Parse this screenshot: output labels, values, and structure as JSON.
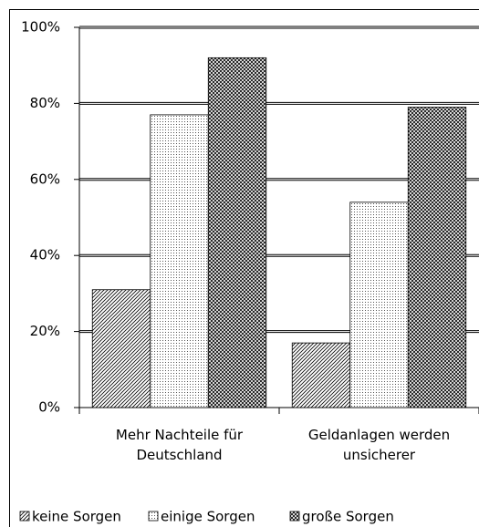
{
  "chart_data": {
    "type": "bar",
    "categories": [
      "Mehr Nachteile für Deutschland",
      "Geldanlagen werden unsicherer"
    ],
    "series": [
      {
        "name": "keine Sorgen",
        "color": "#000000",
        "pattern": "diagonal",
        "values": [
          31,
          17
        ]
      },
      {
        "name": "einige Sorgen",
        "color": "#000000",
        "pattern": "dots",
        "values": [
          77,
          54
        ]
      },
      {
        "name": "große Sorgen",
        "color": "#000000",
        "pattern": "crosshatch",
        "values": [
          92,
          79
        ]
      }
    ],
    "ylim": [
      0,
      100
    ],
    "yticks": [
      {
        "value": 0,
        "label": "0%"
      },
      {
        "value": 20,
        "label": "20%"
      },
      {
        "value": 40,
        "label": "40%"
      },
      {
        "value": 60,
        "label": "60%"
      },
      {
        "value": 80,
        "label": "80%"
      },
      {
        "value": 100,
        "label": "100%"
      }
    ],
    "grid": true,
    "legend": "bottom"
  }
}
